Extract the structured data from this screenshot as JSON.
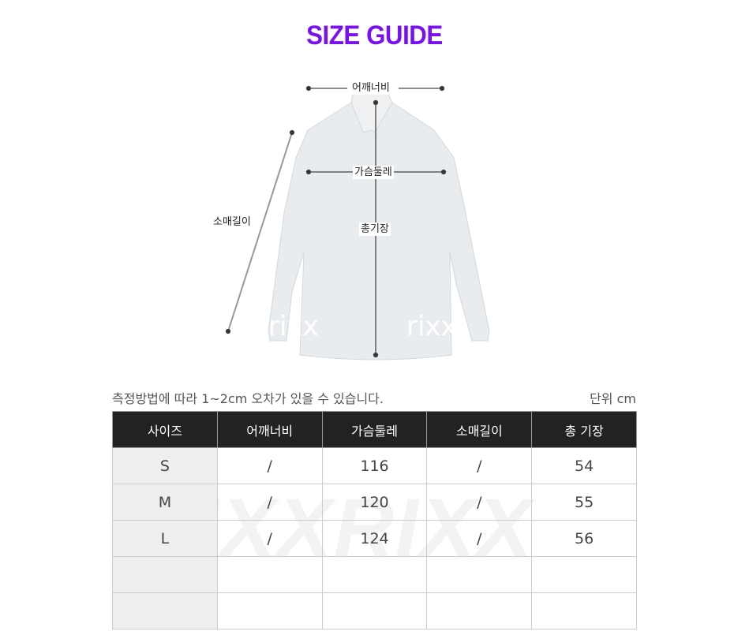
{
  "title": "SIZE GUIDE",
  "diagram": {
    "shoulder_label": "어깨너비",
    "chest_label": "가슴둘레",
    "sleeve_label": "소매길이",
    "length_label": "총기장",
    "watermark": "rixx"
  },
  "note": "측정방법에 따라 1~2cm 오차가 있을 수 있습니다.",
  "unit": "단위 cm",
  "table": {
    "headers": [
      "사이즈",
      "어깨너비",
      "가슴둘레",
      "소매길이",
      "총 기장"
    ],
    "rows": [
      [
        "S",
        "/",
        "116",
        "/",
        "54"
      ],
      [
        "M",
        "/",
        "120",
        "/",
        "55"
      ],
      [
        "L",
        "/",
        "124",
        "/",
        "56"
      ],
      [
        "",
        "",
        "",
        "",
        ""
      ],
      [
        "",
        "",
        "",
        "",
        ""
      ]
    ],
    "watermark": "RIXXRIXX"
  }
}
